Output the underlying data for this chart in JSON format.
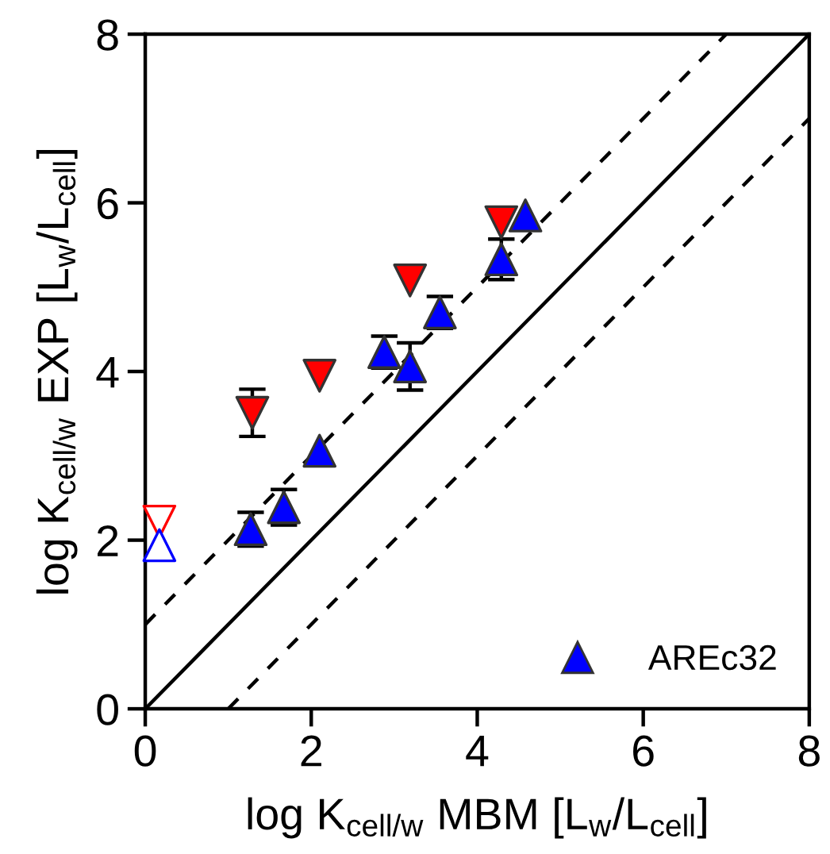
{
  "chart_data": {
    "type": "scatter",
    "xlabel": "log K$_{cell/w}$ MBM [L$_{w}$/L$_{cell}$]",
    "ylabel": "log K$_{cell/w}$ EXP [L$_{w}$/L$_{cell}$]",
    "xlim": [
      0,
      8
    ],
    "ylim": [
      0,
      8
    ],
    "xticks": [
      0,
      2,
      4,
      6,
      8
    ],
    "yticks": [
      0,
      2,
      4,
      6,
      8
    ],
    "grid": false,
    "legend": "bottom right",
    "series": [
      {
        "type": "line",
        "color": "#000000",
        "line_style": "dashed",
        "marker": "none",
        "x": [
          0,
          7
        ],
        "values": [
          1,
          8
        ]
      },
      {
        "type": "line",
        "color": "#000000",
        "line_style": "solid",
        "marker": "none",
        "x": [
          0,
          8
        ],
        "values": [
          0,
          8
        ]
      },
      {
        "type": "line",
        "color": "#000000",
        "line_style": "dashed",
        "marker": "none",
        "x": [
          1,
          8
        ],
        "values": [
          0,
          7
        ]
      },
      {
        "color": "#ff0000",
        "marker": "triangle-down",
        "x": [
          1.29,
          2.1,
          3.19,
          4.29
        ],
        "values": [
          3.51,
          3.95,
          5.08,
          5.77
        ],
        "errors": [
          0.28,
          null,
          null,
          null
        ]
      },
      {
        "color": "#ff0000",
        "colors": [
          "#ffffff"
        ],
        "marker": "triangle-down",
        "x": [
          0.17
        ],
        "values": [
          2.22
        ]
      },
      {
        "name": "AREc32",
        "color": "#0000ff",
        "marker": "triangle",
        "x": [
          1.27,
          1.67,
          2.1,
          2.88,
          3.19,
          3.55,
          4.29,
          4.58
        ],
        "values": [
          2.13,
          2.39,
          3.06,
          4.23,
          4.06,
          4.7,
          5.33,
          5.85
        ],
        "errors": [
          0.2,
          0.21,
          null,
          0.19,
          0.28,
          0.19,
          0.24,
          null
        ]
      },
      {
        "color": "#0000ff",
        "colors": [
          "#ffffff"
        ],
        "marker": "triangle",
        "x": [
          0.17
        ],
        "values": [
          1.94
        ]
      }
    ]
  }
}
